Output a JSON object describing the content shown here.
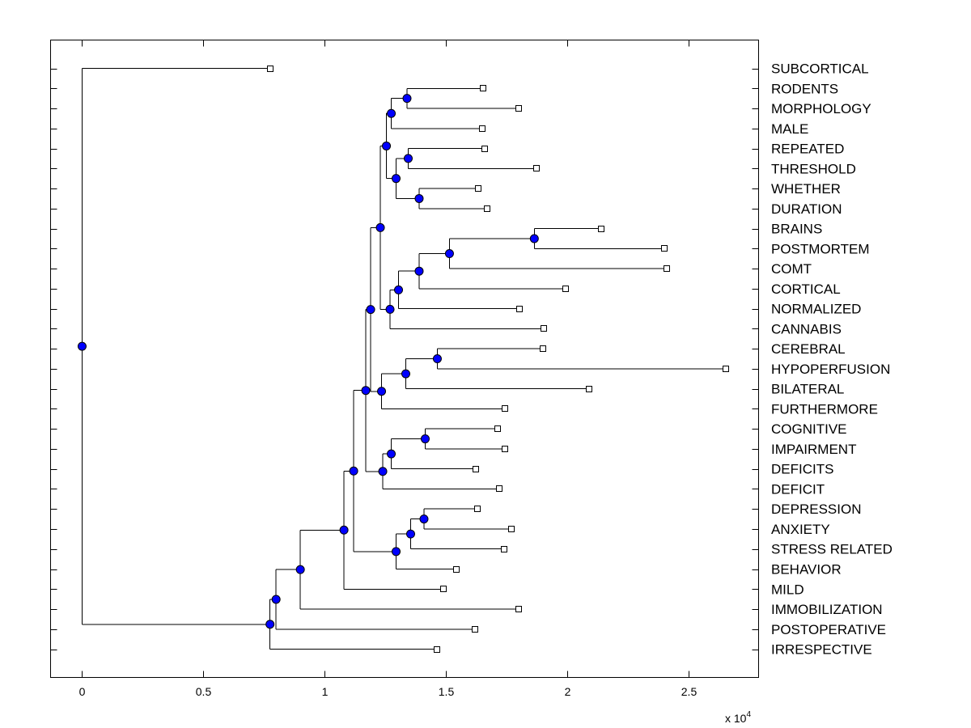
{
  "chart_data": {
    "type": "dendrogram",
    "title": "",
    "xlabel": "",
    "ylabel": "",
    "x_scale_label": "x 10",
    "x_scale_exponent": "4",
    "xlim": [
      -0.13,
      2.79
    ],
    "x_ticks": [
      0,
      0.5,
      1,
      1.5,
      2,
      2.5
    ],
    "x_tick_labels": [
      "0",
      "0.5",
      "1",
      "1.5",
      "2",
      "2.5"
    ],
    "grid": false,
    "leaves": [
      {
        "label": "SUBCORTICAL",
        "x": 0.775
      },
      {
        "label": "RODENTS",
        "x": 1.655
      },
      {
        "label": "MORPHOLOGY",
        "x": 1.8
      },
      {
        "label": "MALE",
        "x": 1.65
      },
      {
        "label": "REPEATED",
        "x": 1.66
      },
      {
        "label": "THRESHOLD",
        "x": 1.875
      },
      {
        "label": "WHETHER",
        "x": 1.635
      },
      {
        "label": "DURATION",
        "x": 1.67
      },
      {
        "label": "BRAINS",
        "x": 2.14
      },
      {
        "label": "POSTMORTEM",
        "x": 2.4
      },
      {
        "label": "COMT",
        "x": 2.41
      },
      {
        "label": "CORTICAL",
        "x": 1.995
      },
      {
        "label": "NORMALIZED",
        "x": 1.805
      },
      {
        "label": "CANNABIS",
        "x": 1.905
      },
      {
        "label": "CEREBRAL",
        "x": 1.9
      },
      {
        "label": "HYPOPERFUSION",
        "x": 2.655
      },
      {
        "label": "BILATERAL",
        "x": 2.09
      },
      {
        "label": "FURTHERMORE",
        "x": 1.745
      },
      {
        "label": "COGNITIVE",
        "x": 1.715
      },
      {
        "label": "IMPAIRMENT",
        "x": 1.745
      },
      {
        "label": "DEFICITS",
        "x": 1.625
      },
      {
        "label": "DEFICIT",
        "x": 1.72
      },
      {
        "label": "DEPRESSION",
        "x": 1.63
      },
      {
        "label": "ANXIETY",
        "x": 1.77
      },
      {
        "label": "STRESS RELATED",
        "x": 1.74
      },
      {
        "label": "BEHAVIOR",
        "x": 1.545
      },
      {
        "label": "MILD",
        "x": 1.49
      },
      {
        "label": "IMMOBILIZATION",
        "x": 1.8
      },
      {
        "label": "POSTOPERATIVE",
        "x": 1.62
      },
      {
        "label": "IRRESPECTIVE",
        "x": 1.465
      }
    ],
    "merges": [
      {
        "id": "n1",
        "x": 1.34,
        "children": [
          "L1",
          "L2"
        ]
      },
      {
        "id": "n2",
        "x": 1.275,
        "children": [
          "n1",
          "L3"
        ]
      },
      {
        "id": "n3",
        "x": 1.39,
        "children": [
          "L6",
          "L7"
        ]
      },
      {
        "id": "n4",
        "x": 1.345,
        "children": [
          "L4",
          "L5"
        ]
      },
      {
        "id": "n5",
        "x": 1.295,
        "children": [
          "n4",
          "n3"
        ]
      },
      {
        "id": "n6",
        "x": 1.255,
        "children": [
          "n2",
          "n5"
        ]
      },
      {
        "id": "n7",
        "x": 1.865,
        "children": [
          "L8",
          "L9"
        ]
      },
      {
        "id": "n8",
        "x": 1.515,
        "children": [
          "n7",
          "L10"
        ]
      },
      {
        "id": "n9",
        "x": 1.39,
        "children": [
          "n8",
          "L11"
        ]
      },
      {
        "id": "n10",
        "x": 1.305,
        "children": [
          "n9",
          "L12"
        ]
      },
      {
        "id": "n11",
        "x": 1.27,
        "children": [
          "n10",
          "L13"
        ]
      },
      {
        "id": "n12",
        "x": 1.23,
        "children": [
          "n6",
          "n11"
        ]
      },
      {
        "id": "n13",
        "x": 1.465,
        "children": [
          "L14",
          "L15"
        ]
      },
      {
        "id": "n14",
        "x": 1.335,
        "children": [
          "n13",
          "L16"
        ]
      },
      {
        "id": "n15",
        "x": 1.235,
        "children": [
          "n14",
          "L17"
        ]
      },
      {
        "id": "n16",
        "x": 1.19,
        "children": [
          "n12",
          "n15"
        ]
      },
      {
        "id": "n17",
        "x": 1.415,
        "children": [
          "L18",
          "L19"
        ]
      },
      {
        "id": "n18",
        "x": 1.275,
        "children": [
          "n17",
          "L20"
        ]
      },
      {
        "id": "n19",
        "x": 1.24,
        "children": [
          "n18",
          "L21"
        ]
      },
      {
        "id": "n20",
        "x": 1.17,
        "children": [
          "n16",
          "n19"
        ]
      },
      {
        "id": "n21",
        "x": 1.41,
        "children": [
          "L22",
          "L23"
        ]
      },
      {
        "id": "n22",
        "x": 1.355,
        "children": [
          "n21",
          "L24"
        ]
      },
      {
        "id": "n23",
        "x": 1.295,
        "children": [
          "n22",
          "L25"
        ]
      },
      {
        "id": "n24",
        "x": 1.12,
        "children": [
          "n20",
          "n23"
        ]
      },
      {
        "id": "n25",
        "x": 1.08,
        "children": [
          "n24",
          "L26"
        ]
      },
      {
        "id": "n26",
        "x": 0.9,
        "children": [
          "n25",
          "L27"
        ]
      },
      {
        "id": "n27",
        "x": 0.8,
        "children": [
          "n26",
          "L28"
        ]
      },
      {
        "id": "n28",
        "x": 0.775,
        "children": [
          "n27",
          "L29"
        ]
      },
      {
        "id": "n29",
        "x": 0.0,
        "children": [
          "L0",
          "n28"
        ]
      }
    ]
  }
}
